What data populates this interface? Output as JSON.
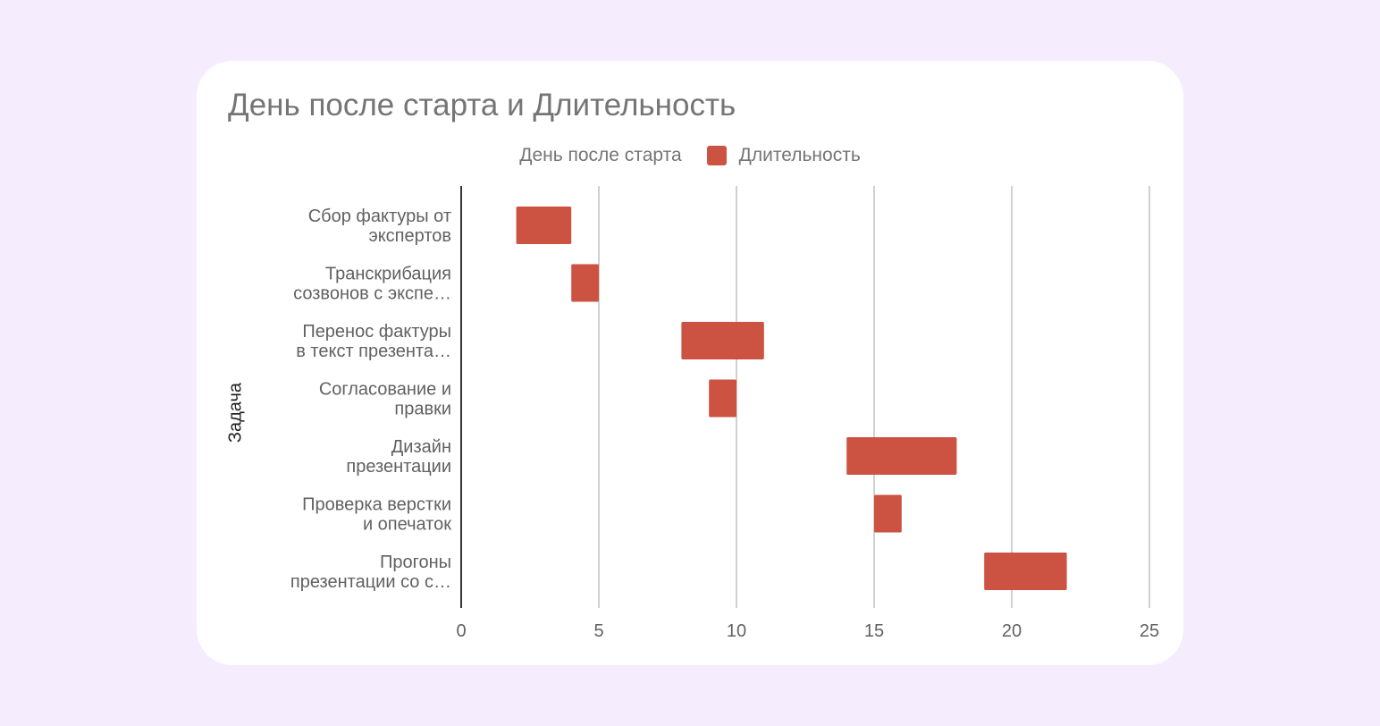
{
  "chart_data": {
    "type": "bar",
    "orientation": "horizontal",
    "stacked": true,
    "title": "День после старта и Длительность",
    "ylabel": "Задача",
    "xlabel": "",
    "xlim": [
      0,
      25
    ],
    "xticks": [
      0,
      5,
      10,
      15,
      20,
      25
    ],
    "grid": true,
    "legend_position": "top",
    "categories": [
      "Сбор фактуры от экспертов",
      "Транскрибация созвонов с экспе…",
      "Перенос фактуры в текст презента…",
      "Согласование и правки",
      "Дизайн презентации",
      "Проверка верстки и опечаток",
      "Прогоны презентации со с…"
    ],
    "category_lines": [
      [
        "Сбор фактуры от",
        "экспертов"
      ],
      [
        "Транскрибация",
        "созвонов с экспе…"
      ],
      [
        "Перенос фактуры",
        "в текст презента…"
      ],
      [
        "Согласование и",
        "правки"
      ],
      [
        "Дизайн",
        "презентации"
      ],
      [
        "Проверка верстки",
        "и опечаток"
      ],
      [
        "Прогоны",
        "презентации со с…"
      ]
    ],
    "series": [
      {
        "name": "День после старта",
        "values": [
          2,
          4,
          8,
          9,
          14,
          15,
          19
        ],
        "color": "transparent"
      },
      {
        "name": "Длительность",
        "values": [
          2,
          1,
          3,
          1,
          4,
          1,
          3
        ],
        "color": "#cc5242"
      }
    ]
  }
}
